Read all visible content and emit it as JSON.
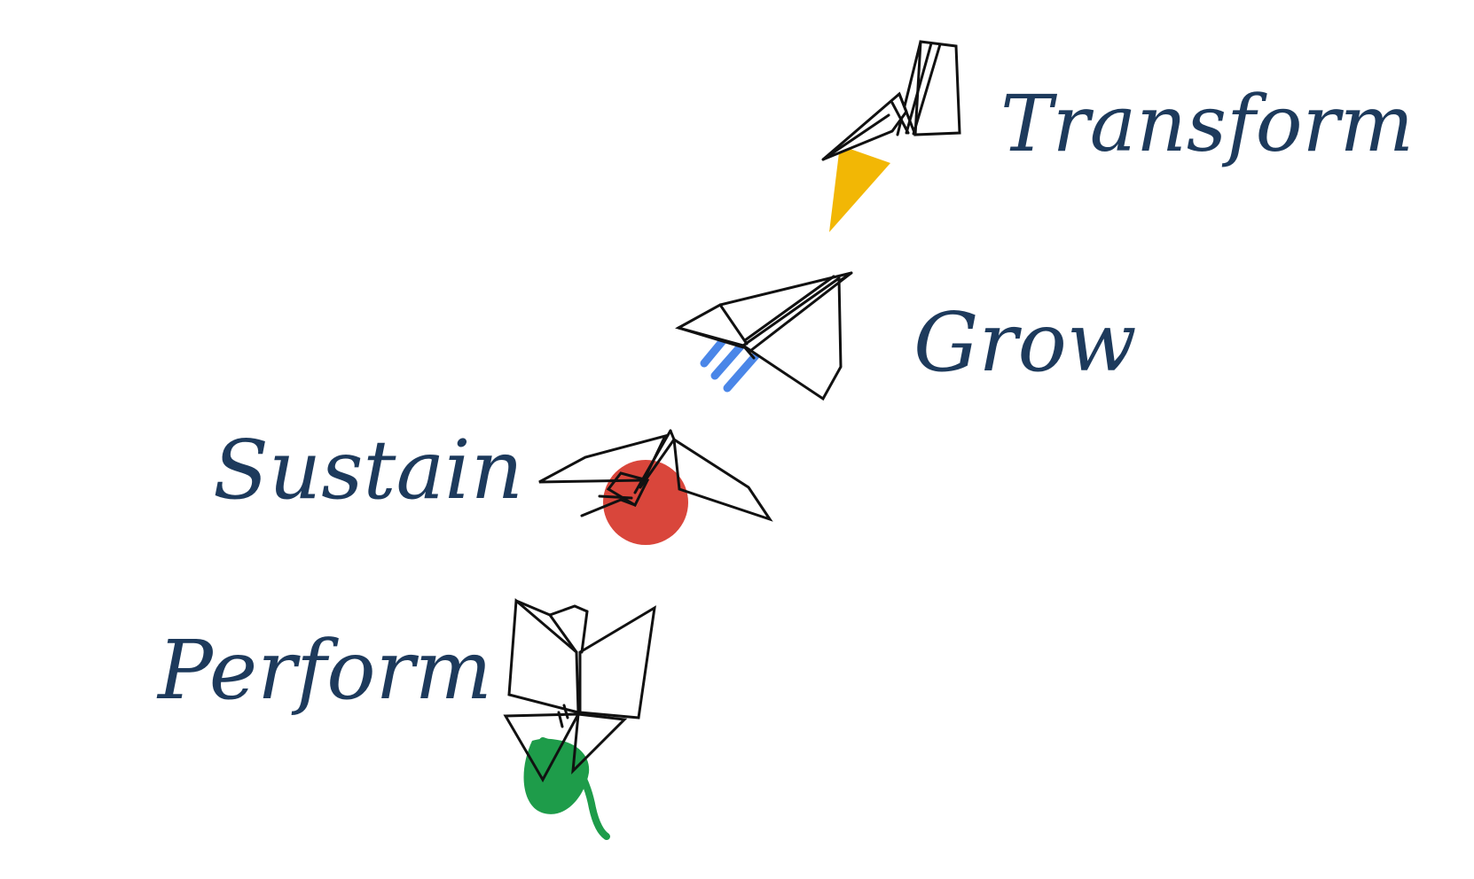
{
  "stages": [
    {
      "id": "transform",
      "label": "Transform",
      "accent_color": "#f2b705",
      "accent_shape": "triangle"
    },
    {
      "id": "grow",
      "label": "Grow",
      "accent_color": "#4a86e8",
      "accent_shape": "stripes"
    },
    {
      "id": "sustain",
      "label": "Sustain",
      "accent_color": "#d9463b",
      "accent_shape": "circle"
    },
    {
      "id": "perform",
      "label": "Perform",
      "accent_color": "#1e9c4a",
      "accent_shape": "leaf"
    }
  ],
  "colors": {
    "label_text": "#1d3a5c",
    "line_art": "#111111",
    "background": "#ffffff"
  }
}
